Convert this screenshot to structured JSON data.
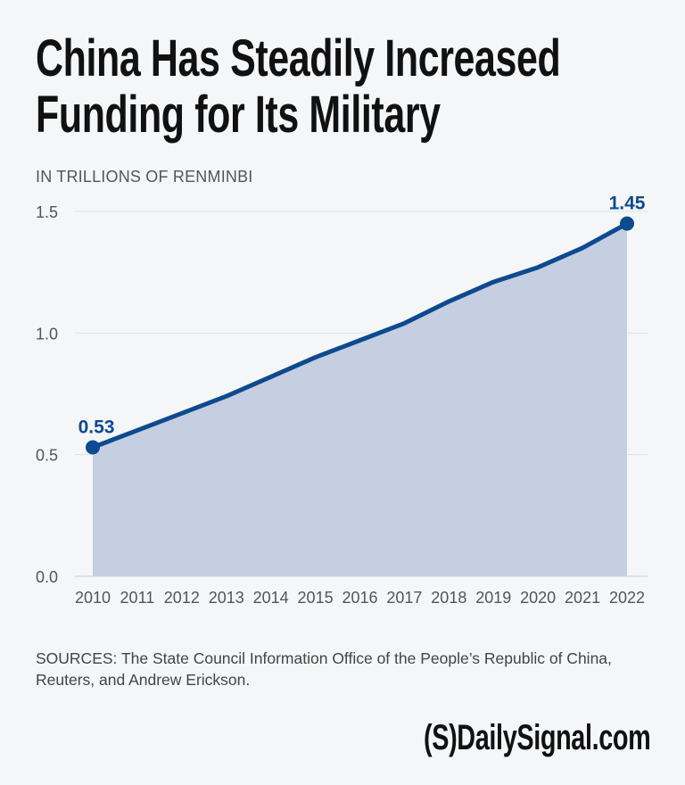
{
  "title_lines": [
    "China Has Steadily Increased",
    "Funding for Its Military"
  ],
  "source": "SOURCES: The State Council Information Office of the People’s Republic of China, Reuters, and Andrew Erickson.",
  "logo": "(S)DailySignal.com",
  "colors": {
    "line": "#0d4a8f",
    "fill": "#c6cee2",
    "grid": "#dfe2e6",
    "background": "#f4f6f8"
  },
  "chart_data": {
    "type": "area",
    "title": "",
    "ylabel": "IN TRILLIONS OF RENMINBI",
    "xlabel": "",
    "x": [
      "2010",
      "2011",
      "2012",
      "2013",
      "2014",
      "2015",
      "2016",
      "2017",
      "2018",
      "2019",
      "2020",
      "2021",
      "2022"
    ],
    "values": [
      0.53,
      0.6,
      0.67,
      0.74,
      0.82,
      0.9,
      0.97,
      1.04,
      1.13,
      1.21,
      1.27,
      1.35,
      1.45
    ],
    "ylim": [
      0,
      1.5
    ],
    "yticks": [
      "0.0",
      "0.5",
      "1.0",
      "1.5"
    ],
    "yticks_values": [
      0,
      0.5,
      1.0,
      1.5
    ],
    "grid": true,
    "annotations": [
      {
        "x": "2010",
        "label": "0.53"
      },
      {
        "x": "2022",
        "label": "1.45"
      }
    ]
  }
}
